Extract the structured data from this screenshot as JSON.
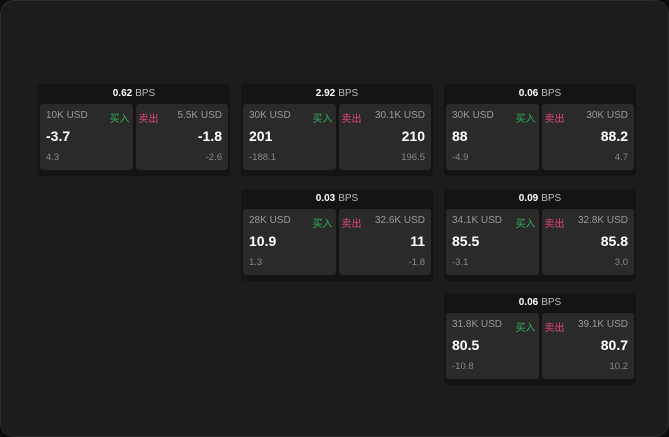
{
  "unit": "BPS",
  "buy_label": "买入",
  "sell_label": "卖出",
  "colors": {
    "buy": "#2fb35a",
    "sell": "#e0457b",
    "background": "#1c1c1c"
  },
  "cards": [
    {
      "bps": "0.62",
      "bid": {
        "amount": "10K USD",
        "price": "-3.7",
        "change": "4.3"
      },
      "ask": {
        "amount": "5.5K USD",
        "price": "-1.8",
        "change": "-2.6"
      }
    },
    {
      "bps": "2.92",
      "bid": {
        "amount": "30K USD",
        "price": "201",
        "change": "-188.1"
      },
      "ask": {
        "amount": "30.1K USD",
        "price": "210",
        "change": "196.5"
      }
    },
    {
      "bps": "0.06",
      "bid": {
        "amount": "30K USD",
        "price": "88",
        "change": "-4.9"
      },
      "ask": {
        "amount": "30K USD",
        "price": "88.2",
        "change": "4.7"
      }
    },
    {
      "bps": "0.03",
      "bid": {
        "amount": "28K USD",
        "price": "10.9",
        "change": "1.3"
      },
      "ask": {
        "amount": "32.6K USD",
        "price": "11",
        "change": "-1.8"
      }
    },
    {
      "bps": "0.09",
      "bid": {
        "amount": "34.1K USD",
        "price": "85.5",
        "change": "-3.1"
      },
      "ask": {
        "amount": "32.8K USD",
        "price": "85.8",
        "change": "3.0"
      }
    },
    {
      "bps": "0.06",
      "bid": {
        "amount": "31.8K USD",
        "price": "80.5",
        "change": "-10.8"
      },
      "ask": {
        "amount": "39.1K USD",
        "price": "80.7",
        "change": "10.2"
      }
    }
  ]
}
